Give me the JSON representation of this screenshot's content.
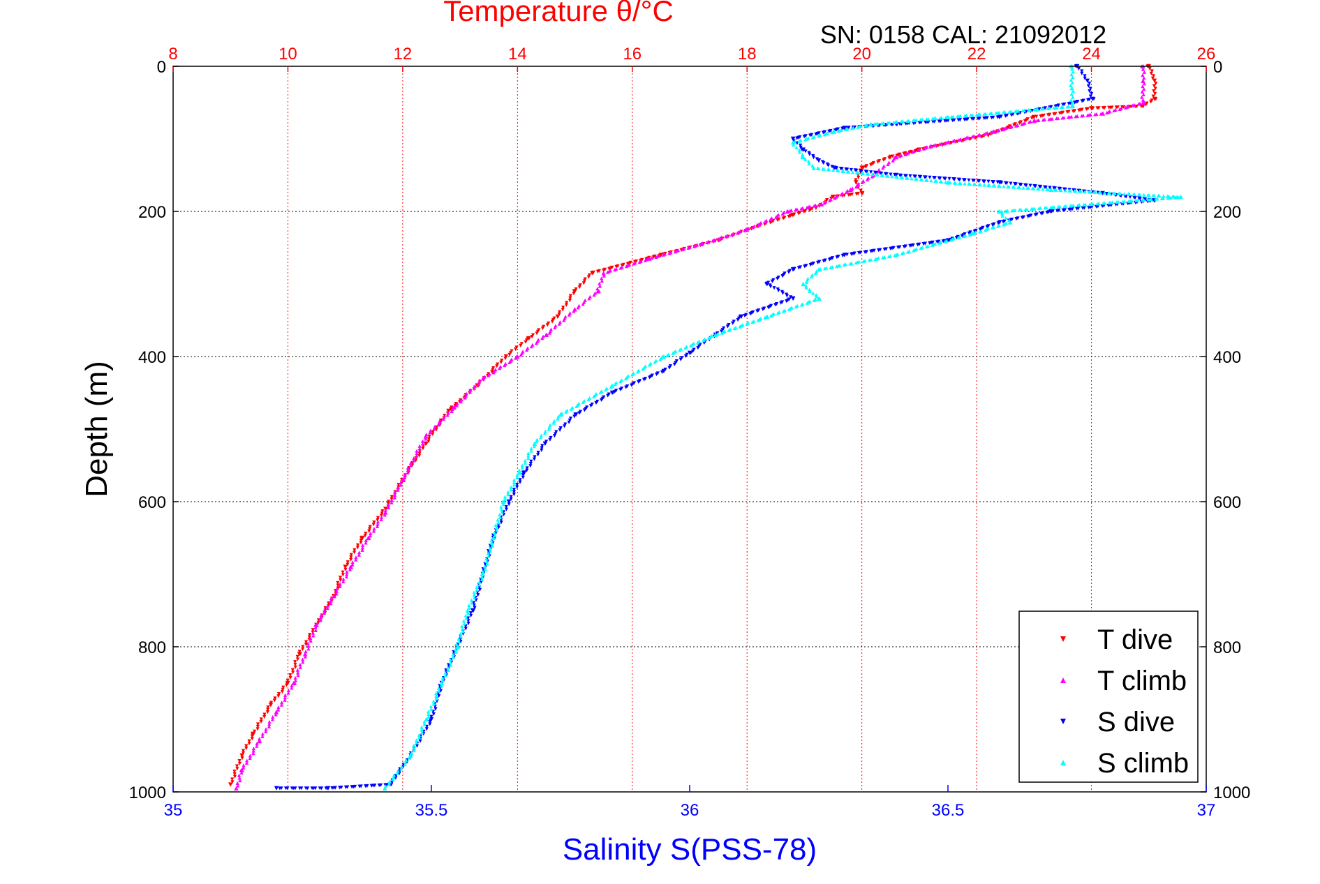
{
  "chart_data": {
    "type": "scatter",
    "title": "Temperature θ/°C",
    "subtitle": "SN: 0158  CAL: 21092012",
    "ylabel": "Depth (m)",
    "xlabel_bottom": "Salinity S(PSS-78)",
    "temperature_axis": {
      "range": [
        8,
        26
      ],
      "ticks": [
        8,
        10,
        12,
        14,
        16,
        18,
        20,
        22,
        24,
        26
      ],
      "position": "top"
    },
    "salinity_axis": {
      "range": [
        35,
        37
      ],
      "ticks": [
        "35",
        "35.5",
        "36",
        "36.5",
        "37"
      ],
      "tick_values": [
        35,
        35.5,
        36,
        36.5,
        37
      ],
      "position": "bottom"
    },
    "depth_axis": {
      "range": [
        0,
        1000
      ],
      "reversed": true,
      "ticks": [
        0,
        200,
        400,
        600,
        800,
        1000
      ]
    },
    "grid": true,
    "legend_position": "bottom-right",
    "colors": {
      "t_dive": "#ff0000",
      "t_climb": "#ff00ff",
      "s_dive": "#0000ff",
      "s_climb": "#00ffff",
      "temp_axis": "#ff0000",
      "sal_axis": "#0000ff"
    },
    "series": [
      {
        "name": "T dive",
        "key": "t_dive",
        "axis": "temperature",
        "marker": "triangle-down",
        "points": [
          [
            25.0,
            0
          ],
          [
            25.1,
            20
          ],
          [
            25.1,
            45
          ],
          [
            24.9,
            55
          ],
          [
            24.0,
            58
          ],
          [
            23.0,
            70
          ],
          [
            22.2,
            95
          ],
          [
            21.0,
            115
          ],
          [
            20.5,
            125
          ],
          [
            20.0,
            140
          ],
          [
            19.9,
            160
          ],
          [
            20.0,
            175
          ],
          [
            19.5,
            180
          ],
          [
            19.2,
            195
          ],
          [
            18.8,
            205
          ],
          [
            18.2,
            220
          ],
          [
            17.5,
            240
          ],
          [
            16.5,
            260
          ],
          [
            15.3,
            285
          ],
          [
            15.0,
            310
          ],
          [
            14.7,
            345
          ],
          [
            14.2,
            375
          ],
          [
            13.8,
            400
          ],
          [
            13.3,
            440
          ],
          [
            12.8,
            475
          ],
          [
            12.4,
            520
          ],
          [
            12.0,
            570
          ],
          [
            11.7,
            610
          ],
          [
            11.3,
            650
          ],
          [
            11.0,
            690
          ],
          [
            10.8,
            730
          ],
          [
            10.5,
            770
          ],
          [
            10.2,
            810
          ],
          [
            10.0,
            850
          ],
          [
            9.7,
            880
          ],
          [
            9.4,
            920
          ],
          [
            9.2,
            950
          ],
          [
            9.0,
            990
          ]
        ]
      },
      {
        "name": "T climb",
        "key": "t_climb",
        "axis": "temperature",
        "marker": "triangle-up",
        "points": [
          [
            24.9,
            0
          ],
          [
            24.9,
            20
          ],
          [
            24.9,
            50
          ],
          [
            24.2,
            65
          ],
          [
            23.0,
            75
          ],
          [
            22.3,
            90
          ],
          [
            21.2,
            110
          ],
          [
            20.6,
            125
          ],
          [
            20.2,
            150
          ],
          [
            19.8,
            170
          ],
          [
            19.3,
            190
          ],
          [
            18.7,
            200
          ],
          [
            18.0,
            225
          ],
          [
            17.2,
            245
          ],
          [
            16.3,
            265
          ],
          [
            15.5,
            285
          ],
          [
            15.4,
            310
          ],
          [
            15.0,
            335
          ],
          [
            14.5,
            370
          ],
          [
            14.0,
            400
          ],
          [
            13.4,
            430
          ],
          [
            12.9,
            470
          ],
          [
            12.4,
            510
          ],
          [
            12.0,
            570
          ],
          [
            11.7,
            615
          ],
          [
            11.4,
            650
          ],
          [
            11.1,
            690
          ],
          [
            10.8,
            730
          ],
          [
            10.5,
            770
          ],
          [
            10.3,
            810
          ],
          [
            10.1,
            850
          ],
          [
            9.8,
            890
          ],
          [
            9.5,
            930
          ],
          [
            9.2,
            970
          ],
          [
            9.1,
            995
          ]
        ]
      },
      {
        "name": "S dive",
        "key": "s_dive",
        "axis": "salinity",
        "marker": "triangle-down",
        "points": [
          [
            36.75,
            0
          ],
          [
            36.77,
            20
          ],
          [
            36.78,
            45
          ],
          [
            36.6,
            70
          ],
          [
            36.4,
            80
          ],
          [
            36.3,
            85
          ],
          [
            36.2,
            100
          ],
          [
            36.22,
            115
          ],
          [
            36.25,
            130
          ],
          [
            36.28,
            140
          ],
          [
            36.4,
            150
          ],
          [
            36.6,
            160
          ],
          [
            36.8,
            175
          ],
          [
            36.9,
            185
          ],
          [
            36.7,
            200
          ],
          [
            36.6,
            215
          ],
          [
            36.5,
            240
          ],
          [
            36.3,
            260
          ],
          [
            36.2,
            280
          ],
          [
            36.15,
            300
          ],
          [
            36.2,
            320
          ],
          [
            36.1,
            345
          ],
          [
            36.05,
            370
          ],
          [
            36.0,
            395
          ],
          [
            35.95,
            420
          ],
          [
            35.85,
            450
          ],
          [
            35.78,
            480
          ],
          [
            35.72,
            520
          ],
          [
            35.68,
            560
          ],
          [
            35.65,
            600
          ],
          [
            35.62,
            650
          ],
          [
            35.6,
            700
          ],
          [
            35.58,
            750
          ],
          [
            35.55,
            800
          ],
          [
            35.52,
            850
          ],
          [
            35.5,
            900
          ],
          [
            35.46,
            950
          ],
          [
            35.42,
            990
          ],
          [
            35.3,
            995
          ],
          [
            35.2,
            995
          ]
        ]
      },
      {
        "name": "S climb",
        "key": "s_climb",
        "axis": "salinity",
        "marker": "triangle-up",
        "points": [
          [
            36.74,
            0
          ],
          [
            36.74,
            30
          ],
          [
            36.74,
            55
          ],
          [
            36.5,
            70
          ],
          [
            36.35,
            80
          ],
          [
            36.28,
            90
          ],
          [
            36.2,
            105
          ],
          [
            36.22,
            125
          ],
          [
            36.24,
            140
          ],
          [
            36.5,
            160
          ],
          [
            36.7,
            170
          ],
          [
            36.95,
            180
          ],
          [
            36.6,
            200
          ],
          [
            36.62,
            215
          ],
          [
            36.55,
            230
          ],
          [
            36.4,
            260
          ],
          [
            36.25,
            280
          ],
          [
            36.22,
            300
          ],
          [
            36.25,
            320
          ],
          [
            36.15,
            345
          ],
          [
            36.05,
            370
          ],
          [
            35.95,
            400
          ],
          [
            35.85,
            440
          ],
          [
            35.75,
            480
          ],
          [
            35.7,
            520
          ],
          [
            35.67,
            560
          ],
          [
            35.64,
            600
          ],
          [
            35.62,
            650
          ],
          [
            35.6,
            700
          ],
          [
            35.57,
            750
          ],
          [
            35.55,
            800
          ],
          [
            35.52,
            850
          ],
          [
            35.49,
            900
          ],
          [
            35.46,
            950
          ],
          [
            35.41,
            995
          ]
        ]
      }
    ]
  }
}
